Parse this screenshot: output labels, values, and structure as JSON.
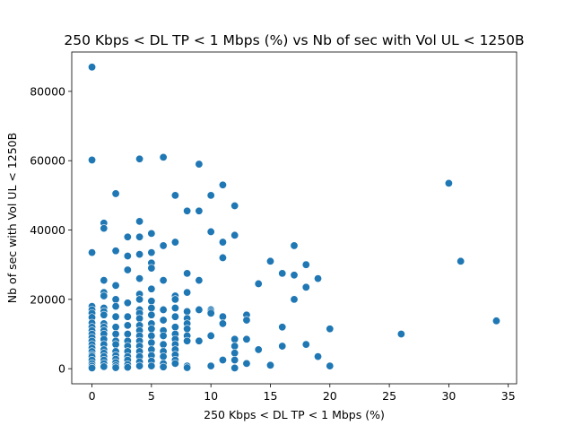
{
  "chart_data": {
    "type": "scatter",
    "title": "250 Kbps < DL TP < 1 Mbps (%) vs Nb of sec with Vol UL < 1250B",
    "xlabel": "250 Kbps < DL TP < 1 Mbps (%)",
    "ylabel": "Nb of sec with Vol UL < 1250B",
    "xlim": [
      -1.7,
      35.7
    ],
    "ylim": [
      -4350,
      91350
    ],
    "x_ticks": [
      0,
      5,
      10,
      15,
      20,
      25,
      30,
      35
    ],
    "y_ticks": [
      0,
      20000,
      40000,
      60000,
      80000
    ],
    "x_tick_labels": [
      "0",
      "5",
      "10",
      "15",
      "20",
      "25",
      "30",
      "35"
    ],
    "y_tick_labels": [
      "0",
      "20000",
      "40000",
      "60000",
      "80000"
    ],
    "grid": false,
    "marker_color": "#1f77b4",
    "marker_edge_color": "#ffffff",
    "points": [
      [
        0,
        87000
      ],
      [
        0,
        60200
      ],
      [
        0,
        33500
      ],
      [
        0,
        18000
      ],
      [
        0,
        17000
      ],
      [
        0,
        16000
      ],
      [
        0,
        14800
      ],
      [
        0,
        13200
      ],
      [
        0,
        12000
      ],
      [
        0,
        11000
      ],
      [
        0,
        10000
      ],
      [
        0,
        9000
      ],
      [
        0,
        8000
      ],
      [
        0,
        7000
      ],
      [
        0,
        6000
      ],
      [
        0,
        5000
      ],
      [
        0,
        4000
      ],
      [
        0,
        3500
      ],
      [
        0,
        2500
      ],
      [
        0,
        1500
      ],
      [
        0,
        800
      ],
      [
        0,
        200
      ],
      [
        1,
        42000
      ],
      [
        1,
        40500
      ],
      [
        1,
        25500
      ],
      [
        1,
        22000
      ],
      [
        1,
        21000
      ],
      [
        1,
        17500
      ],
      [
        1,
        16500
      ],
      [
        1,
        15500
      ],
      [
        1,
        13000
      ],
      [
        1,
        12000
      ],
      [
        1,
        11000
      ],
      [
        1,
        10000
      ],
      [
        1,
        8500
      ],
      [
        1,
        7000
      ],
      [
        1,
        5500
      ],
      [
        1,
        4500
      ],
      [
        1,
        3500
      ],
      [
        1,
        2500
      ],
      [
        1,
        1500
      ],
      [
        1,
        600
      ],
      [
        2,
        50500
      ],
      [
        2,
        34000
      ],
      [
        2,
        24000
      ],
      [
        2,
        20000
      ],
      [
        2,
        18000
      ],
      [
        2,
        15000
      ],
      [
        2,
        12000
      ],
      [
        2,
        10000
      ],
      [
        2,
        8000
      ],
      [
        2,
        7000
      ],
      [
        2,
        5000
      ],
      [
        2,
        3800
      ],
      [
        2,
        2800
      ],
      [
        2,
        1800
      ],
      [
        2,
        900
      ],
      [
        2,
        300
      ],
      [
        3,
        38000
      ],
      [
        3,
        32500
      ],
      [
        3,
        28500
      ],
      [
        3,
        19000
      ],
      [
        3,
        15000
      ],
      [
        3,
        12500
      ],
      [
        3,
        10000
      ],
      [
        3,
        8000
      ],
      [
        3,
        6500
      ],
      [
        3,
        5000
      ],
      [
        3,
        3500
      ],
      [
        3,
        2500
      ],
      [
        3,
        1200
      ],
      [
        3,
        400
      ],
      [
        4,
        60500
      ],
      [
        4,
        42500
      ],
      [
        4,
        38000
      ],
      [
        4,
        33000
      ],
      [
        4,
        26000
      ],
      [
        4,
        21500
      ],
      [
        4,
        20000
      ],
      [
        4,
        17000
      ],
      [
        4,
        16000
      ],
      [
        4,
        14500
      ],
      [
        4,
        12500
      ],
      [
        4,
        11000
      ],
      [
        4,
        9500
      ],
      [
        4,
        8000
      ],
      [
        4,
        6500
      ],
      [
        4,
        5000
      ],
      [
        4,
        3500
      ],
      [
        4,
        2000
      ],
      [
        4,
        800
      ],
      [
        5,
        39000
      ],
      [
        5,
        33500
      ],
      [
        5,
        30500
      ],
      [
        5,
        29000
      ],
      [
        5,
        23000
      ],
      [
        5,
        19500
      ],
      [
        5,
        17500
      ],
      [
        5,
        15500
      ],
      [
        5,
        13000
      ],
      [
        5,
        11500
      ],
      [
        5,
        9500
      ],
      [
        5,
        7500
      ],
      [
        5,
        5500
      ],
      [
        5,
        3800
      ],
      [
        5,
        2200
      ],
      [
        5,
        800
      ],
      [
        6,
        61000
      ],
      [
        6,
        35500
      ],
      [
        6,
        25500
      ],
      [
        6,
        17000
      ],
      [
        6,
        14000
      ],
      [
        6,
        11000
      ],
      [
        6,
        9500
      ],
      [
        6,
        7000
      ],
      [
        6,
        5000
      ],
      [
        6,
        3500
      ],
      [
        6,
        1500
      ],
      [
        6,
        500
      ],
      [
        7,
        50000
      ],
      [
        7,
        36500
      ],
      [
        7,
        21000
      ],
      [
        7,
        20000
      ],
      [
        7,
        17500
      ],
      [
        7,
        15000
      ],
      [
        7,
        12000
      ],
      [
        7,
        10000
      ],
      [
        7,
        8500
      ],
      [
        7,
        7000
      ],
      [
        7,
        5500
      ],
      [
        7,
        4000
      ],
      [
        7,
        2500
      ],
      [
        7,
        1500
      ],
      [
        8,
        45500
      ],
      [
        8,
        27500
      ],
      [
        8,
        22000
      ],
      [
        8,
        16500
      ],
      [
        8,
        14500
      ],
      [
        8,
        13000
      ],
      [
        8,
        11500
      ],
      [
        8,
        9500
      ],
      [
        8,
        8000
      ],
      [
        8,
        800
      ],
      [
        8,
        300
      ],
      [
        9,
        59000
      ],
      [
        9,
        45500
      ],
      [
        9,
        25500
      ],
      [
        9,
        17000
      ],
      [
        9,
        8000
      ],
      [
        10,
        50000
      ],
      [
        10,
        39500
      ],
      [
        10,
        17000
      ],
      [
        10,
        16500
      ],
      [
        10,
        16000
      ],
      [
        10,
        9500
      ],
      [
        10,
        800
      ],
      [
        11,
        53000
      ],
      [
        11,
        36500
      ],
      [
        11,
        32000
      ],
      [
        11,
        15000
      ],
      [
        11,
        13000
      ],
      [
        11,
        2500
      ],
      [
        12,
        47000
      ],
      [
        12,
        38500
      ],
      [
        12,
        8500
      ],
      [
        12,
        6500
      ],
      [
        12,
        4500
      ],
      [
        12,
        2500
      ],
      [
        12,
        200
      ],
      [
        13,
        15500
      ],
      [
        13,
        14000
      ],
      [
        13,
        8500
      ],
      [
        13,
        1500
      ],
      [
        14,
        24500
      ],
      [
        14,
        5500
      ],
      [
        15,
        31000
      ],
      [
        15,
        1000
      ],
      [
        16,
        27500
      ],
      [
        16,
        12000
      ],
      [
        16,
        6500
      ],
      [
        17,
        35500
      ],
      [
        17,
        27000
      ],
      [
        17,
        20000
      ],
      [
        18,
        30000
      ],
      [
        18,
        23500
      ],
      [
        18,
        7000
      ],
      [
        19,
        26000
      ],
      [
        19,
        3500
      ],
      [
        20,
        11500
      ],
      [
        20,
        800
      ],
      [
        26,
        10000
      ],
      [
        30,
        53500
      ],
      [
        31,
        31000
      ],
      [
        34,
        13800
      ]
    ]
  }
}
